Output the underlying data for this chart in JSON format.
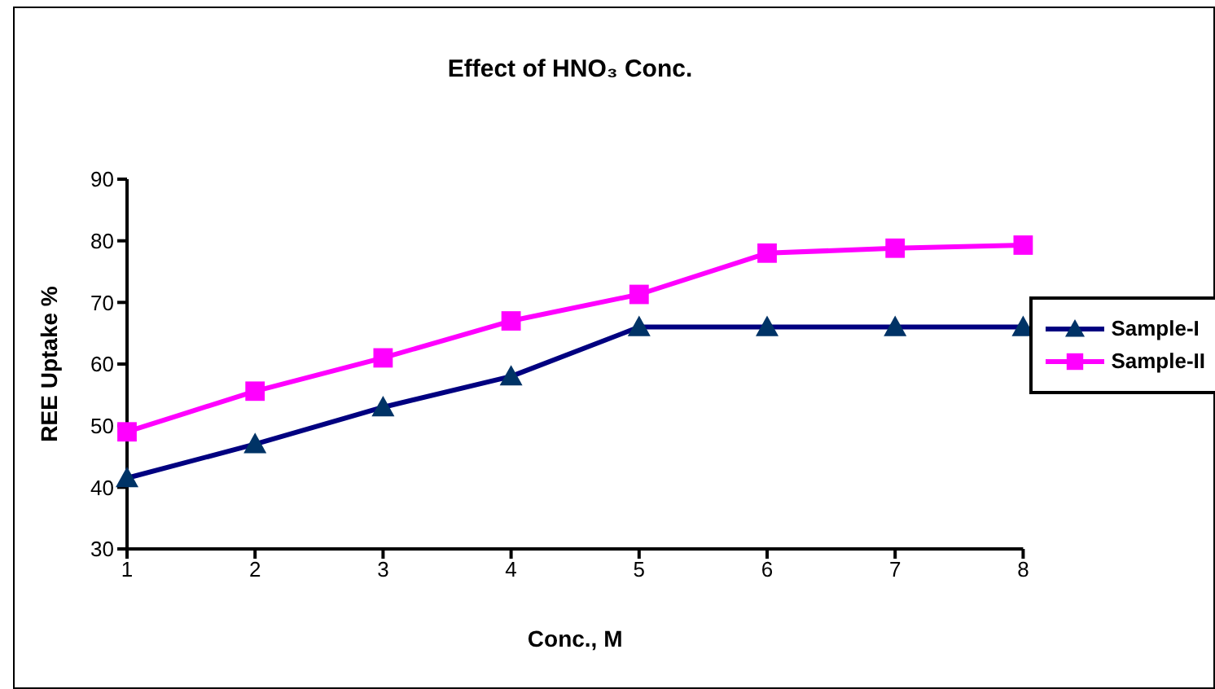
{
  "chart_data": {
    "type": "line",
    "title": "Effect of HNO₃ Conc.",
    "xlabel": "Conc., M",
    "ylabel": "REE  Uptake %",
    "categories": [
      "1",
      "2",
      "3",
      "4",
      "5",
      "6",
      "7",
      "8"
    ],
    "ylim": [
      30,
      90
    ],
    "yticks": [
      30,
      40,
      50,
      60,
      70,
      80,
      90
    ],
    "grid": false,
    "legend": "right",
    "series": [
      {
        "name": "Sample-I",
        "color": "#000080",
        "marker": "triangle",
        "values": [
          41.5,
          47,
          53,
          58,
          66,
          66,
          66,
          66
        ]
      },
      {
        "name": "Sample-II",
        "color": "#ff00ff",
        "marker": "square",
        "values": [
          49,
          55.6,
          61,
          67,
          71.3,
          78,
          78.8,
          79.3
        ]
      }
    ]
  }
}
